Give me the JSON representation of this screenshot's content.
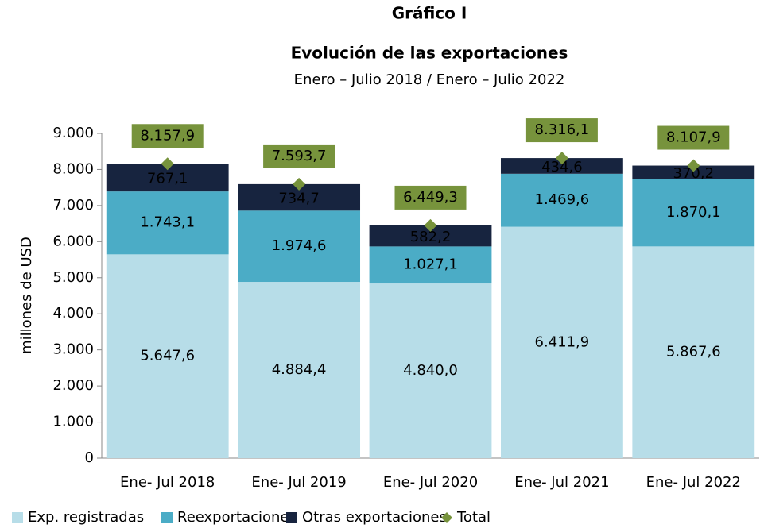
{
  "chart_data": {
    "type": "bar",
    "stacked": true,
    "title": "Gráfico I",
    "subtitle": "Evolución de las exportaciones",
    "period": "Enero – Julio 2018 / Enero – Julio 2022",
    "y_label": "millones de  USD",
    "categories": [
      "Ene- Jul 2018",
      "Ene- Jul 2019",
      "Ene- Jul 2020",
      "Ene- Jul 2021",
      "Ene- Jul 2022"
    ],
    "series": [
      {
        "name": "Exp. registradas",
        "color": "#b7dde8",
        "values": [
          5647.6,
          4884.4,
          4840.0,
          6411.9,
          5867.6
        ],
        "value_labels": [
          "5.647,6",
          "4.884,4",
          "4.840,0",
          "6.411,9",
          "5.867,6"
        ]
      },
      {
        "name": "Reexportaciones",
        "color": "#4bacc6",
        "values": [
          1743.1,
          1974.6,
          1027.1,
          1469.6,
          1870.1
        ],
        "value_labels": [
          "1.743,1",
          "1.974,6",
          "1.027,1",
          "1.469,6",
          "1.870,1"
        ]
      },
      {
        "name": "Otras exportaciones",
        "color": "#17243f",
        "values": [
          767.1,
          734.7,
          582.2,
          434.6,
          370.2
        ],
        "value_labels": [
          "767,1",
          "734,7",
          "582,2",
          "434,6",
          "370,2"
        ]
      },
      {
        "name": "Total",
        "color": "#77933c",
        "marker": "diamond",
        "values": [
          8157.9,
          7593.7,
          6449.3,
          8316.1,
          8107.9
        ],
        "value_labels": [
          "8.157,9",
          "7.593,7",
          "6.449,3",
          "8.316,1",
          "8.107,9"
        ]
      }
    ],
    "ylim": [
      0,
      9000
    ],
    "yticks": [
      0,
      {
        "value": 1000,
        "label": "1.000"
      },
      {
        "value": 2000,
        "label": "2.000"
      },
      {
        "value": 3000,
        "label": "3.000"
      },
      {
        "value": 4000,
        "label": "4.000"
      },
      {
        "value": 5000,
        "label": "5.000"
      },
      {
        "value": 6000,
        "label": "6.000"
      },
      {
        "value": 7000,
        "label": "7.000"
      },
      {
        "value": 8000,
        "label": "8.000"
      },
      {
        "value": 9000,
        "label": "9.000"
      }
    ],
    "legend": "bottom"
  }
}
